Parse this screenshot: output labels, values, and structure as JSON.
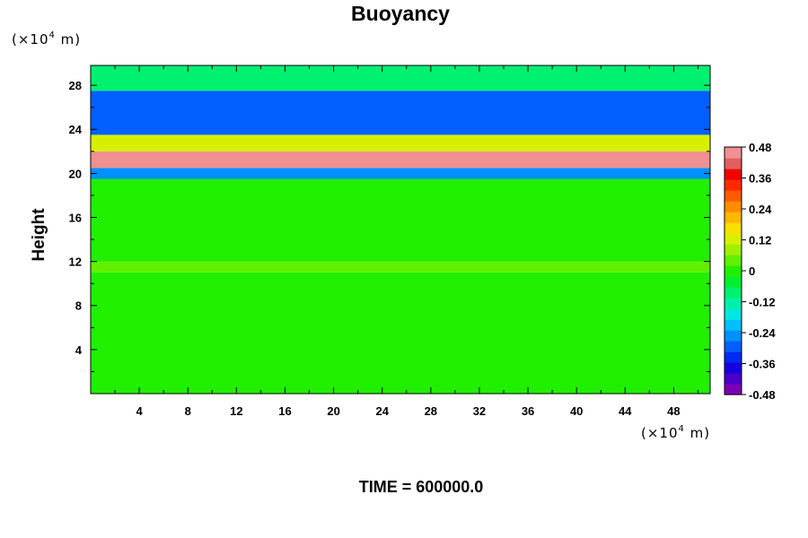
{
  "chart_data": {
    "type": "heatmap",
    "title": "Buoyancy",
    "ylabel": "Height",
    "xunit": "(×10",
    "xunit_exp": "4",
    "xunit_tail": " m)",
    "yunit": "(×10",
    "yunit_exp": "4",
    "yunit_tail": " m)",
    "footer": "TIME = 600000.0",
    "xlim": [
      0,
      51
    ],
    "ylim": [
      0,
      29.8
    ],
    "x_ticks": [
      4,
      8,
      12,
      16,
      20,
      24,
      28,
      32,
      36,
      40,
      44,
      48
    ],
    "x_tick_labels": [
      "4",
      "8",
      "12",
      "16",
      "20",
      "24",
      "28",
      "32",
      "36",
      "40",
      "44",
      "48"
    ],
    "y_ticks": [
      4,
      8,
      12,
      16,
      20,
      24,
      28
    ],
    "y_tick_labels": [
      "4",
      "8",
      "12",
      "16",
      "20",
      "24",
      "28"
    ],
    "colorbar": {
      "range": [
        -0.48,
        0.48
      ],
      "tick_values": [
        0.48,
        0.36,
        0.24,
        0.12,
        0,
        -0.12,
        -0.24,
        -0.36,
        -0.48
      ],
      "tick_labels": [
        "0.48",
        "0.36",
        "0.24",
        "0.12",
        "0",
        "-0.12",
        "-0.24",
        "-0.36",
        "-0.48"
      ],
      "colors": [
        "#7a00b4",
        "#4a00c8",
        "#1500e0",
        "#0028f5",
        "#0060ff",
        "#0090ff",
        "#00c0ff",
        "#00e8e0",
        "#00f0a8",
        "#00f070",
        "#00f030",
        "#20f000",
        "#60f000",
        "#a0f000",
        "#d8f000",
        "#f8e000",
        "#ffb800",
        "#ff8c00",
        "#ff5a00",
        "#ff2a00",
        "#f00000",
        "#e06060",
        "#f09090"
      ]
    },
    "field_summary": [
      {
        "height_range": [
          0,
          11
        ],
        "buoyancy": 0.0
      },
      {
        "height_range": [
          11,
          12
        ],
        "buoyancy": 0.03
      },
      {
        "height_range": [
          12,
          19.5
        ],
        "buoyancy": 0.01
      },
      {
        "height_range": [
          19.5,
          20.5
        ],
        "buoyancy": -0.25
      },
      {
        "height_range": [
          20.5,
          22
        ],
        "buoyancy": 0.45
      },
      {
        "height_range": [
          22,
          23.5
        ],
        "buoyancy": 0.12
      },
      {
        "height_range": [
          23.5,
          27.5
        ],
        "buoyancy": -0.3
      },
      {
        "height_range": [
          27.5,
          29.8
        ],
        "buoyancy": -0.1
      }
    ]
  }
}
